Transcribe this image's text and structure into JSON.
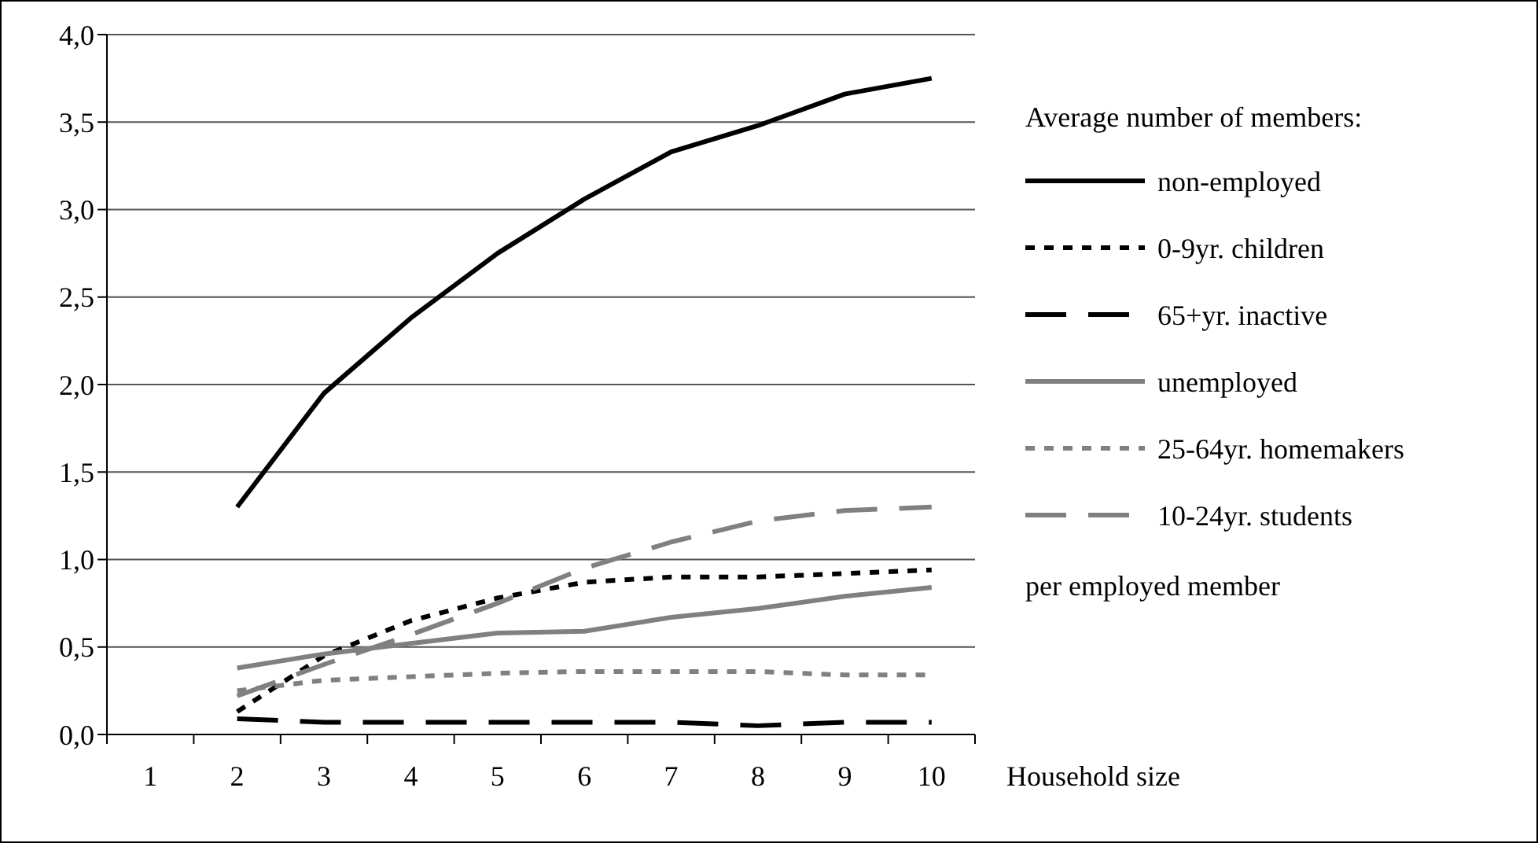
{
  "chart_data": {
    "type": "line",
    "categories": [
      "1",
      "2",
      "3",
      "4",
      "5",
      "6",
      "7",
      "8",
      "9",
      "10"
    ],
    "xlabel": "Household size",
    "legend_title": "Average number of members:",
    "annotations": [
      "per employed member"
    ],
    "ylim": [
      0,
      4
    ],
    "yticks": [
      {
        "value": 0,
        "label": "0,0"
      },
      {
        "value": 0.5,
        "label": "0,5"
      },
      {
        "value": 1,
        "label": "1,0"
      },
      {
        "value": 1.5,
        "label": "1,5"
      },
      {
        "value": 2,
        "label": "2,0"
      },
      {
        "value": 2.5,
        "label": "2,5"
      },
      {
        "value": 3,
        "label": "3,0"
      },
      {
        "value": 3.5,
        "label": "3,5"
      },
      {
        "value": 4,
        "label": "4,0"
      }
    ],
    "grid": "y",
    "legend": "right",
    "marker": "none",
    "series": [
      {
        "name": "non-employed",
        "color": "#000000",
        "line_style": "solid",
        "values": [
          null,
          1.3,
          1.95,
          2.38,
          2.75,
          3.06,
          3.33,
          3.48,
          3.66,
          3.75
        ]
      },
      {
        "name": "0-9yr. children",
        "color": "#000000",
        "line_style": "dotted",
        "values": [
          null,
          0.13,
          0.45,
          0.65,
          0.78,
          0.87,
          0.9,
          0.9,
          0.92,
          0.94
        ]
      },
      {
        "name": "65+yr. inactive",
        "color": "#000000",
        "line_style": "dashed",
        "values": [
          null,
          0.09,
          0.07,
          0.07,
          0.07,
          0.07,
          0.07,
          0.05,
          0.07,
          0.07
        ]
      },
      {
        "name": "unemployed",
        "color": "#808080",
        "line_style": "solid",
        "values": [
          null,
          0.38,
          0.46,
          0.52,
          0.58,
          0.59,
          0.67,
          0.72,
          0.79,
          0.84
        ]
      },
      {
        "name": "25-64yr. homemakers",
        "color": "#808080",
        "line_style": "dotted",
        "values": [
          null,
          0.25,
          0.31,
          0.33,
          0.35,
          0.36,
          0.36,
          0.36,
          0.34,
          0.34
        ]
      },
      {
        "name": "10-24yr. students",
        "color": "#808080",
        "line_style": "dashed",
        "values": [
          null,
          0.22,
          0.4,
          0.57,
          0.75,
          0.95,
          1.1,
          1.22,
          1.28,
          1.3
        ]
      }
    ]
  }
}
